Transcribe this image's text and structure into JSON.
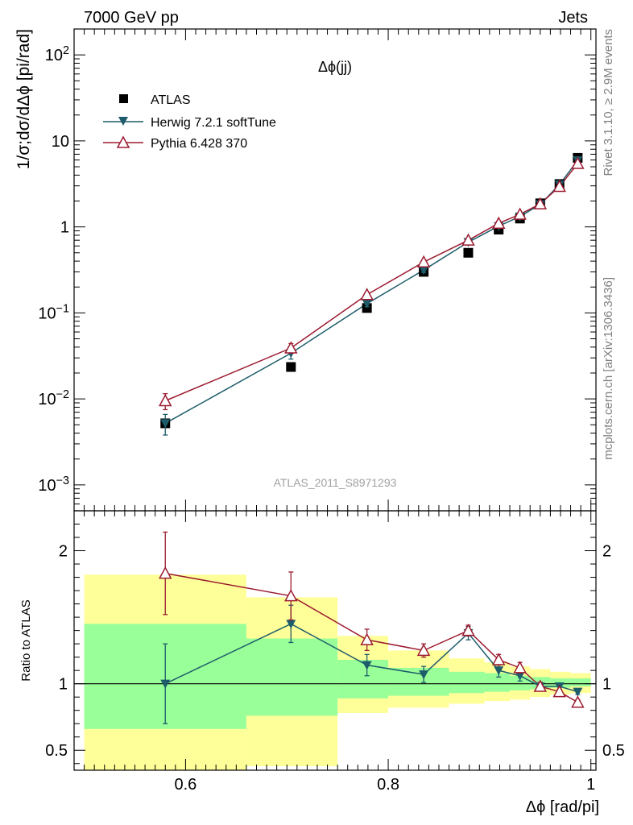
{
  "header": {
    "left": "7000 GeV pp",
    "right": "Jets",
    "side_top": "Rivet 3.1.10, ≥ 2.9M events",
    "side_bottom": "mcplots.cern.ch [arXiv:1306.3436]"
  },
  "chart_data": {
    "type": "line",
    "title": "Δϕ(jj)",
    "watermark": "ATLAS_2011_S8971293",
    "xlabel": "Δϕ [rad/pi]",
    "xlim": [
      0.49,
      1.005
    ],
    "x_ticks": [
      "0.6",
      "0.8",
      "1"
    ],
    "main": {
      "ylabel": "1/σ;dσ/dΔϕ [pi/rad]",
      "yscale": "log",
      "ylim": [
        0.0005,
        200
      ],
      "y_ticks": [
        "10^-3",
        "10^-2",
        "10^-1",
        "1",
        "10",
        "10^2"
      ],
      "legend_position": "top-left",
      "series": [
        {
          "name": "ATLAS",
          "marker": "square",
          "color": "#000000",
          "x": [
            0.58,
            0.704,
            0.779,
            0.835,
            0.879,
            0.909,
            0.93,
            0.95,
            0.969,
            0.987
          ],
          "y": [
            0.0052,
            0.0235,
            0.114,
            0.3,
            0.5,
            0.93,
            1.25,
            1.88,
            3.15,
            6.35
          ]
        },
        {
          "name": "Herwig 7.2.1 softTune",
          "marker": "triangle-down",
          "color": "#1d5c6a",
          "x": [
            0.58,
            0.704,
            0.779,
            0.835,
            0.879,
            0.909,
            0.93,
            0.95,
            0.969,
            0.987
          ],
          "y": [
            0.0052,
            0.034,
            0.128,
            0.315,
            0.665,
            1.02,
            1.32,
            1.83,
            3.1,
            5.95
          ],
          "yerr": [
            0.0014,
            0.005,
            0.01,
            0.02,
            0.03,
            0.04,
            0.05,
            0.05,
            0.06,
            0.08
          ]
        },
        {
          "name": "Pythia 6.428 370",
          "marker": "triangle-up-open",
          "color": "#9b1b30",
          "x": [
            0.58,
            0.704,
            0.779,
            0.835,
            0.879,
            0.909,
            0.93,
            0.95,
            0.969,
            0.987
          ],
          "y": [
            0.0095,
            0.039,
            0.163,
            0.39,
            0.7,
            1.1,
            1.4,
            1.85,
            2.95,
            5.45
          ],
          "yerr": [
            0.002,
            0.005,
            0.01,
            0.02,
            0.03,
            0.04,
            0.05,
            0.05,
            0.06,
            0.08
          ]
        }
      ]
    },
    "ratio": {
      "ylabel": "Ratio to ATLAS",
      "ylim": [
        0.35,
        2.3
      ],
      "y_ticks": [
        "0.5",
        "1",
        "2"
      ],
      "bin_edges": [
        0.5,
        0.66,
        0.75,
        0.8,
        0.86,
        0.895,
        0.92,
        0.94,
        0.96,
        0.98,
        1.0
      ],
      "band_inner": {
        "lo": [
          0.66,
          0.76,
          0.89,
          0.91,
          0.93,
          0.94,
          0.95,
          0.96,
          0.97,
          0.98
        ],
        "hi": [
          1.45,
          1.34,
          1.18,
          1.12,
          1.09,
          1.08,
          1.06,
          1.05,
          1.04,
          1.04
        ]
      },
      "band_outer": {
        "lo": [
          0.35,
          0.38,
          0.78,
          0.82,
          0.85,
          0.87,
          0.88,
          0.9,
          0.92,
          0.93
        ],
        "hi": [
          1.82,
          1.65,
          1.36,
          1.25,
          1.19,
          1.16,
          1.13,
          1.11,
          1.09,
          1.08
        ]
      },
      "series": [
        {
          "name": "Herwig 7.2.1 softTune",
          "color": "#1d5c6a",
          "marker": "triangle-down",
          "x": [
            0.58,
            0.704,
            0.779,
            0.835,
            0.879,
            0.909,
            0.93,
            0.95,
            0.969,
            0.987
          ],
          "y": [
            1.0,
            1.45,
            1.14,
            1.07,
            1.38,
            1.1,
            1.06,
            0.98,
            0.98,
            0.94
          ],
          "yerr": [
            0.3,
            0.14,
            0.08,
            0.06,
            0.05,
            0.05,
            0.04,
            0.03,
            0.02,
            0.02
          ]
        },
        {
          "name": "Pythia 6.428 370",
          "color": "#9b1b30",
          "marker": "triangle-up-open",
          "x": [
            0.58,
            0.704,
            0.779,
            0.835,
            0.879,
            0.909,
            0.93,
            0.95,
            0.969,
            0.987
          ],
          "y": [
            1.83,
            1.66,
            1.33,
            1.25,
            1.4,
            1.18,
            1.12,
            0.98,
            0.94,
            0.86
          ],
          "yerr": [
            0.31,
            0.18,
            0.08,
            0.05,
            0.04,
            0.04,
            0.04,
            0.03,
            0.02,
            0.02
          ]
        }
      ]
    }
  }
}
